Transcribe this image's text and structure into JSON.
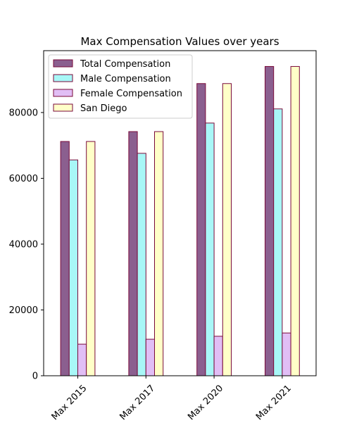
{
  "chart_data": {
    "type": "bar",
    "title": "Max Compensation Values over years",
    "xlabel": "",
    "ylabel": "",
    "categories": [
      "Max 2015",
      "Max 2017",
      "Max 2020",
      "Max 2021"
    ],
    "series": [
      {
        "name": "Total Compensation",
        "values": [
          71200,
          74200,
          88800,
          94000
        ],
        "color": "#8b5f8f"
      },
      {
        "name": "Male Compensation",
        "values": [
          65600,
          67600,
          76800,
          81100
        ],
        "color": "#a8f7f7"
      },
      {
        "name": "Female Compensation",
        "values": [
          9600,
          11100,
          12000,
          13000
        ],
        "color": "#e1bef5"
      },
      {
        "name": "San Diego",
        "values": [
          71200,
          74200,
          88800,
          94000
        ],
        "color": "#ffffc8"
      }
    ],
    "edge_color": "#7a0a3a",
    "ylim": [
      0,
      98800
    ],
    "yticks": [
      0,
      20000,
      40000,
      60000,
      80000
    ],
    "ytick_labels": [
      "0",
      "20000",
      "40000",
      "60000",
      "80000"
    ],
    "legend": "top-left",
    "grid": false
  }
}
